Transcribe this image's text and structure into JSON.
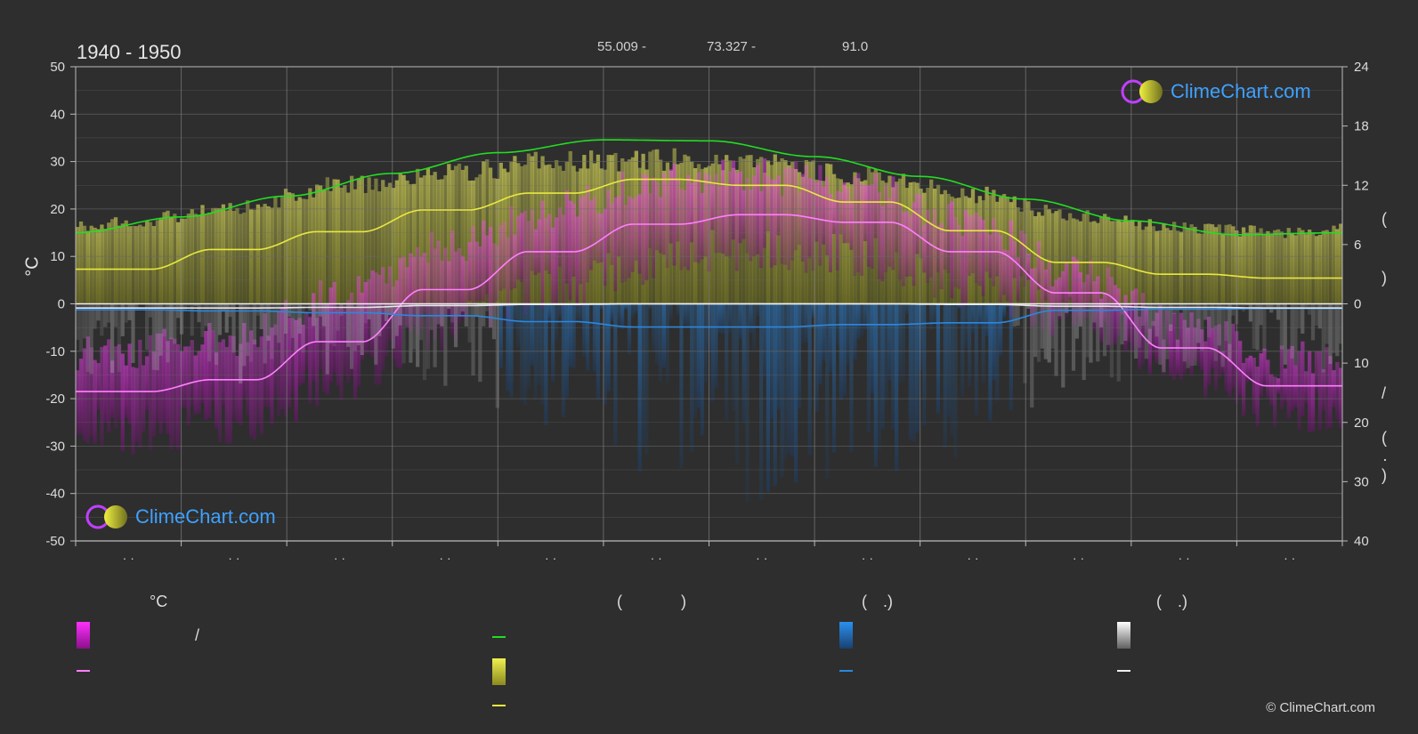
{
  "header": {
    "period": "1940 - 1950",
    "coords": [
      "55.009 -",
      "73.327 -",
      "91.0"
    ]
  },
  "axes": {
    "left_label": "°C",
    "right_top_label_parts": [
      "(",
      ")"
    ],
    "right_bottom_label_parts": [
      "/",
      "(",
      "·",
      ")"
    ]
  },
  "legend": {
    "col1_header": "°C",
    "col1_slash": "/",
    "col2_header_parts": [
      "(",
      ")"
    ],
    "col3_header_parts": [
      "(",
      ".)"
    ],
    "col4_header_parts": [
      "(",
      ".)"
    ]
  },
  "branding": {
    "logo_text": "ClimeChart.com",
    "copyright": "© ClimeChart.com"
  },
  "colors": {
    "background": "#2e2e2e",
    "grid": "#555555",
    "temp_range": "#e040e0",
    "temp_mean": "#ff80ff",
    "daylight": "#22dd22",
    "sunshine": "#e8e840",
    "rain": "#2a88e0",
    "snow": "#e8e8e8",
    "logo": "#3ea1ff"
  },
  "chart_data": {
    "type": "line",
    "title": "1940 - 1950",
    "x_months": 12,
    "x_tick_labels": [
      "· ·",
      "· ·",
      "· ·",
      "· ·",
      "· ·",
      "· ·",
      "· ·",
      "· ·",
      "· ·",
      "· ·",
      "· ·",
      "· ·"
    ],
    "left_axis": {
      "label": "°C",
      "range": [
        -50,
        50
      ],
      "ticks": [
        50,
        40,
        30,
        20,
        10,
        0,
        -10,
        -20,
        -30,
        -40,
        -50
      ]
    },
    "right_axis_top": {
      "range": [
        0,
        24
      ],
      "ticks": [
        24,
        18,
        12,
        6,
        0
      ]
    },
    "right_axis_bottom": {
      "range": [
        0,
        40
      ],
      "ticks": [
        10,
        20,
        30,
        40
      ]
    },
    "series": [
      {
        "key": "daylight",
        "unit": "h",
        "points": [
          [
            0,
            7.2
          ],
          [
            1,
            8.8
          ],
          [
            2,
            10.9
          ],
          [
            3,
            13.2
          ],
          [
            4,
            15.3
          ],
          [
            5,
            16.6
          ],
          [
            6,
            16.5
          ],
          [
            7,
            14.9
          ],
          [
            8,
            12.9
          ],
          [
            9,
            10.6
          ],
          [
            10,
            8.4
          ],
          [
            11,
            7.0
          ],
          [
            12,
            7.2
          ]
        ]
      },
      {
        "key": "sunshine",
        "unit": "h",
        "type": "step",
        "values": [
          3.5,
          5.5,
          7.3,
          9.5,
          11.2,
          12.6,
          12.0,
          10.3,
          7.4,
          4.2,
          3.0,
          2.6
        ]
      },
      {
        "key": "temp_mean",
        "unit": "°C",
        "type": "step",
        "values": [
          -18.5,
          -16,
          -8,
          3,
          11,
          16.8,
          18.8,
          17.2,
          11,
          2.3,
          -9.3,
          -17.3
        ]
      },
      {
        "key": "precip",
        "unit": "mm",
        "type": "step",
        "values": [
          1.0,
          1.2,
          1.5,
          2.0,
          3.0,
          3.9,
          3.9,
          3.5,
          3.2,
          1.1,
          0.9,
          0.8
        ]
      },
      {
        "key": "snow",
        "unit": "mm",
        "type": "step",
        "values": [
          0.7,
          0.7,
          0.6,
          0.3,
          0.1,
          0.0,
          0.0,
          0.0,
          0.1,
          0.4,
          0.6,
          0.7
        ]
      }
    ],
    "bands": {
      "temp_max_daily": [
        -10,
        -7,
        2,
        12,
        20,
        26,
        27,
        24,
        17,
        6,
        -5,
        -12
      ],
      "temp_min_daily": [
        -27,
        -25,
        -17,
        -5,
        3,
        9,
        12,
        10,
        4,
        -3,
        -14,
        -23
      ],
      "sunshine_daily_max": [
        9,
        10.5,
        13,
        14.2,
        15.5,
        15.8,
        15.5,
        14,
        12,
        9.5,
        8.3,
        7.8
      ],
      "precip_daily_max": [
        12,
        14,
        12,
        14,
        22,
        30,
        34,
        30,
        26,
        14,
        12,
        12
      ]
    },
    "grid": true,
    "legend_position": "bottom"
  }
}
